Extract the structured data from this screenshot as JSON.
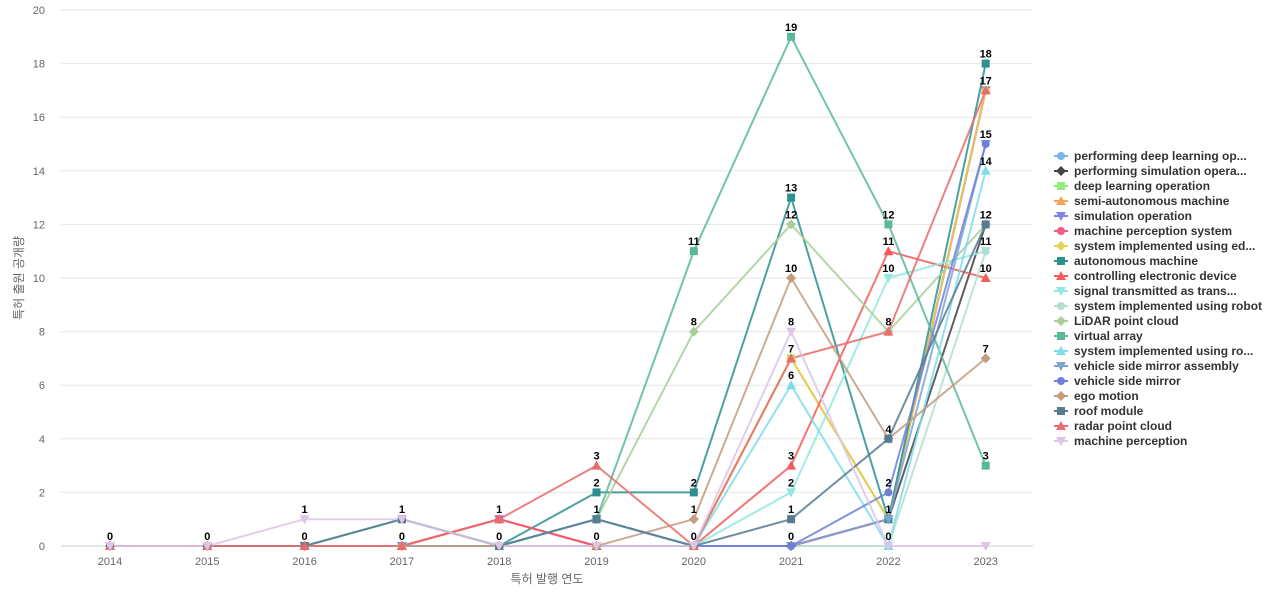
{
  "chart_data": {
    "type": "line",
    "xlabel": "특허 발행 연도",
    "ylabel": "특허 출원 공개량",
    "x": [
      "2014",
      "2015",
      "2016",
      "2017",
      "2018",
      "2019",
      "2020",
      "2021",
      "2022",
      "2023"
    ],
    "ylim": [
      0,
      20
    ],
    "yticks": [
      0,
      2,
      4,
      6,
      8,
      10,
      12,
      14,
      16,
      18,
      20
    ],
    "grid": true,
    "legend_position": "right",
    "series": [
      {
        "name": "performing deep learning op...",
        "color": "#7cb5ec",
        "marker": "circle",
        "values": [
          0,
          0,
          0,
          0,
          0,
          0,
          0,
          0,
          1,
          17
        ]
      },
      {
        "name": "performing simulation opera...",
        "color": "#434348",
        "marker": "diamond",
        "values": [
          0,
          0,
          0,
          0,
          0,
          0,
          0,
          0,
          1,
          12
        ]
      },
      {
        "name": "deep learning operation",
        "color": "#90ed7d",
        "marker": "square",
        "values": [
          0,
          0,
          0,
          0,
          0,
          1,
          0,
          7,
          1,
          17
        ]
      },
      {
        "name": "semi-autonomous machine",
        "color": "#f7a35c",
        "marker": "triangle",
        "values": [
          0,
          0,
          0,
          0,
          0,
          0,
          0,
          7,
          1,
          17
        ]
      },
      {
        "name": "simulation operation",
        "color": "#8085e9",
        "marker": "triangle-down",
        "values": [
          0,
          0,
          0,
          0,
          1,
          0,
          0,
          0,
          1,
          17
        ]
      },
      {
        "name": "machine perception system",
        "color": "#f15c80",
        "marker": "circle",
        "values": [
          0,
          0,
          0,
          0,
          1,
          0,
          0,
          0,
          1,
          17
        ]
      },
      {
        "name": "system implemented using ed...",
        "color": "#e4d354",
        "marker": "diamond",
        "values": [
          0,
          0,
          0,
          0,
          0,
          0,
          0,
          7,
          1,
          17
        ]
      },
      {
        "name": "autonomous machine",
        "color": "#2b908f",
        "marker": "square",
        "values": [
          0,
          0,
          0,
          0,
          0,
          2,
          2,
          13,
          1,
          18
        ]
      },
      {
        "name": "controlling electronic device",
        "color": "#f45b5b",
        "marker": "triangle",
        "values": [
          0,
          0,
          0,
          0,
          1,
          0,
          0,
          3,
          11,
          10
        ]
      },
      {
        "name": "signal transmitted as trans...",
        "color": "#91e8e1",
        "marker": "triangle-down",
        "values": [
          0,
          0,
          0,
          0,
          0,
          0,
          0,
          2,
          10,
          11
        ]
      },
      {
        "name": "system implemented using robot",
        "color": "#b2dfcf",
        "marker": "circle",
        "values": [
          0,
          0,
          0,
          0,
          0,
          0,
          0,
          0,
          0,
          11
        ]
      },
      {
        "name": "LiDAR point cloud",
        "color": "#a8cf9a",
        "marker": "diamond",
        "values": [
          0,
          0,
          0,
          0,
          0,
          1,
          8,
          12,
          8,
          12
        ]
      },
      {
        "name": "virtual array",
        "color": "#5bb79b",
        "marker": "square",
        "values": [
          0,
          0,
          0,
          1,
          0,
          1,
          11,
          19,
          12,
          3
        ]
      },
      {
        "name": "system implemented using ro...",
        "color": "#7fdcea",
        "marker": "triangle",
        "values": [
          0,
          0,
          0,
          0,
          0,
          1,
          0,
          6,
          0,
          14
        ]
      },
      {
        "name": "vehicle side mirror assembly",
        "color": "#7aa6d6",
        "marker": "triangle-down",
        "values": [
          0,
          0,
          0,
          0,
          0,
          1,
          0,
          0,
          1,
          15
        ]
      },
      {
        "name": "vehicle side mirror",
        "color": "#6f7fd9",
        "marker": "circle",
        "values": [
          0,
          0,
          0,
          0,
          0,
          0,
          0,
          0,
          2,
          15
        ]
      },
      {
        "name": "ego motion",
        "color": "#c49c7d",
        "marker": "diamond",
        "values": [
          0,
          0,
          0,
          0,
          0,
          0,
          1,
          10,
          4,
          7
        ]
      },
      {
        "name": "roof module",
        "color": "#577b91",
        "marker": "square",
        "values": [
          0,
          0,
          0,
          1,
          0,
          1,
          0,
          1,
          4,
          12
        ]
      },
      {
        "name": "radar point cloud",
        "color": "#e86c6c",
        "marker": "triangle",
        "values": [
          0,
          0,
          0,
          0,
          1,
          3,
          0,
          7,
          8,
          17
        ]
      },
      {
        "name": "machine perception",
        "color": "#dcc5e6",
        "marker": "triangle-down",
        "values": [
          0,
          0,
          1,
          1,
          0,
          0,
          0,
          8,
          0,
          0
        ]
      }
    ],
    "labels": [
      {
        "x": "2014",
        "y": 0,
        "text": "0"
      },
      {
        "x": "2015",
        "y": 0,
        "text": "0"
      },
      {
        "x": "2016",
        "y": 1,
        "text": "1"
      },
      {
        "x": "2016",
        "y": 0,
        "text": "0"
      },
      {
        "x": "2017",
        "y": 1,
        "text": "1"
      },
      {
        "x": "2017",
        "y": 0,
        "text": "0"
      },
      {
        "x": "2018",
        "y": 1,
        "text": "1"
      },
      {
        "x": "2018",
        "y": 0,
        "text": "0"
      },
      {
        "x": "2019",
        "y": 3,
        "text": "3"
      },
      {
        "x": "2019",
        "y": 2,
        "text": "2"
      },
      {
        "x": "2019",
        "y": 1,
        "text": "1"
      },
      {
        "x": "2019",
        "y": 0,
        "text": "0"
      },
      {
        "x": "2020",
        "y": 11,
        "text": "11"
      },
      {
        "x": "2020",
        "y": 8,
        "text": "8"
      },
      {
        "x": "2020",
        "y": 2,
        "text": "2"
      },
      {
        "x": "2020",
        "y": 1,
        "text": "1"
      },
      {
        "x": "2020",
        "y": 0,
        "text": "0"
      },
      {
        "x": "2021",
        "y": 19,
        "text": "19"
      },
      {
        "x": "2021",
        "y": 13,
        "text": "13"
      },
      {
        "x": "2021",
        "y": 12,
        "text": "12"
      },
      {
        "x": "2021",
        "y": 10,
        "text": "10"
      },
      {
        "x": "2021",
        "y": 8,
        "text": "8"
      },
      {
        "x": "2021",
        "y": 7,
        "text": "7"
      },
      {
        "x": "2021",
        "y": 6,
        "text": "6"
      },
      {
        "x": "2021",
        "y": 3,
        "text": "3"
      },
      {
        "x": "2021",
        "y": 2,
        "text": "2"
      },
      {
        "x": "2021",
        "y": 1,
        "text": "1"
      },
      {
        "x": "2021",
        "y": 0,
        "text": "0"
      },
      {
        "x": "2022",
        "y": 12,
        "text": "12"
      },
      {
        "x": "2022",
        "y": 11,
        "text": "11"
      },
      {
        "x": "2022",
        "y": 10,
        "text": "10"
      },
      {
        "x": "2022",
        "y": 8,
        "text": "8"
      },
      {
        "x": "2022",
        "y": 4,
        "text": "4"
      },
      {
        "x": "2022",
        "y": 2,
        "text": "2"
      },
      {
        "x": "2022",
        "y": 1,
        "text": "1"
      },
      {
        "x": "2022",
        "y": 0,
        "text": "0"
      },
      {
        "x": "2023",
        "y": 18,
        "text": "18"
      },
      {
        "x": "2023",
        "y": 17,
        "text": "17"
      },
      {
        "x": "2023",
        "y": 15,
        "text": "15"
      },
      {
        "x": "2023",
        "y": 14,
        "text": "14"
      },
      {
        "x": "2023",
        "y": 12,
        "text": "12"
      },
      {
        "x": "2023",
        "y": 11,
        "text": "11"
      },
      {
        "x": "2023",
        "y": 10,
        "text": "10"
      },
      {
        "x": "2023",
        "y": 7,
        "text": "7"
      },
      {
        "x": "2023",
        "y": 3,
        "text": "3"
      }
    ]
  }
}
